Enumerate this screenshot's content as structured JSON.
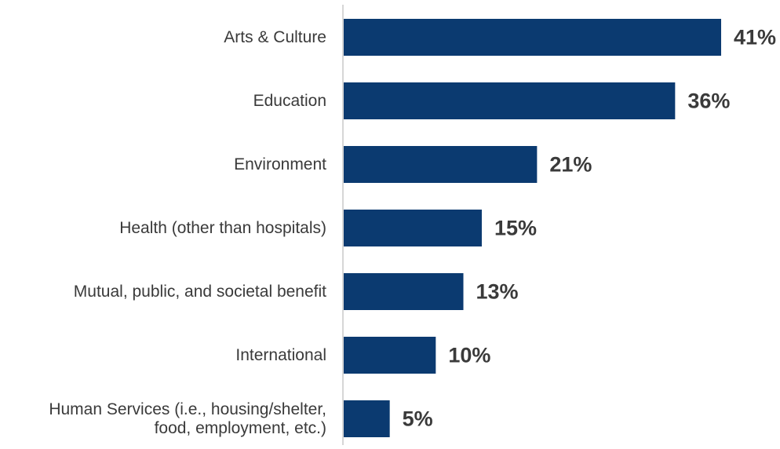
{
  "chart_data": {
    "type": "bar",
    "orientation": "horizontal",
    "categories": [
      "Arts & Culture",
      "Education",
      "Environment",
      "Health (other than hospitals)",
      "Mutual, public, and societal benefit",
      "International",
      "Human Services (i.e., housing/shelter,\nfood, employment, etc.)"
    ],
    "values": [
      41,
      36,
      21,
      15,
      13,
      10,
      5
    ],
    "value_labels": [
      "41%",
      "36%",
      "21%",
      "15%",
      "13%",
      "10%",
      "5%"
    ],
    "title": "",
    "xlabel": "",
    "ylabel": "",
    "xlim": [
      0,
      41
    ],
    "grid": false,
    "legend": "none",
    "colors": {
      "bar": "#0b3a70",
      "axis": "#c8c8c8",
      "text": "#3a3a3a"
    }
  }
}
